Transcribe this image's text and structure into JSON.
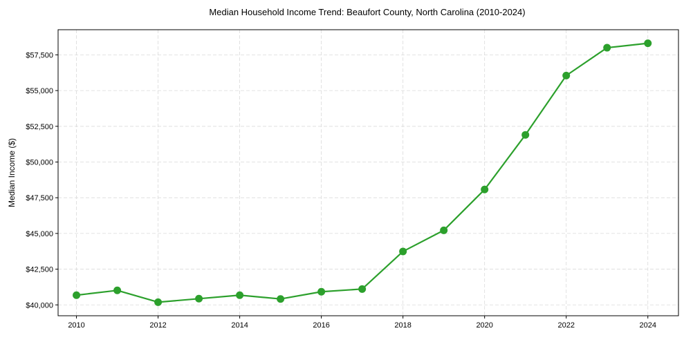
{
  "chart_data": {
    "type": "line",
    "title": "Median Household Income Trend: Beaufort County, North Carolina (2010-2024)",
    "xlabel": "",
    "ylabel": "Median Income ($)",
    "x": [
      2010,
      2011,
      2012,
      2013,
      2014,
      2015,
      2016,
      2017,
      2018,
      2019,
      2020,
      2021,
      2022,
      2023,
      2024
    ],
    "series": [
      {
        "name": "Median Household Income",
        "color": "#2ca02c",
        "values": [
          40680,
          41015,
          40190,
          40435,
          40680,
          40415,
          40920,
          41110,
          43740,
          45220,
          48075,
          51900,
          56050,
          58000,
          58310
        ]
      }
    ],
    "xlim": [
      2009.55,
      2024.75
    ],
    "ylim": [
      39240,
      59260
    ],
    "xticks": [
      2010,
      2012,
      2014,
      2016,
      2018,
      2020,
      2022,
      2024
    ],
    "xtick_labels": [
      "2010",
      "2012",
      "2014",
      "2016",
      "2018",
      "2020",
      "2022",
      "2024"
    ],
    "yticks": [
      40000,
      42500,
      45000,
      47500,
      50000,
      52500,
      55000,
      57500
    ],
    "ytick_labels": [
      "$40,000",
      "$42,500",
      "$45,000",
      "$47,500",
      "$50,000",
      "$52,500",
      "$55,000",
      "$57,500"
    ],
    "grid": true,
    "grid_color": "#d9d9d9"
  }
}
